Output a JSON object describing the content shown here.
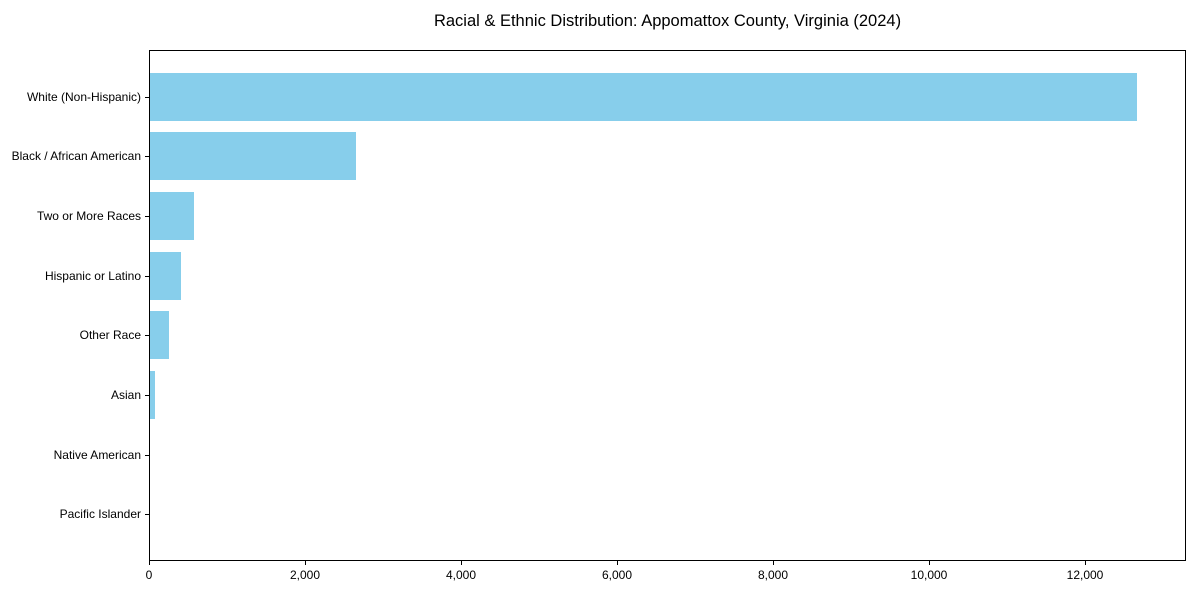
{
  "chart_data": {
    "type": "bar",
    "orientation": "horizontal",
    "title": "Racial & Ethnic Distribution: Appomattox County, Virginia (2024)",
    "categories": [
      "White (Non-Hispanic)",
      "Black / African American",
      "Two or More Races",
      "Hispanic or Latino",
      "Other Race",
      "Asian",
      "Native American",
      "Pacific Islander"
    ],
    "values": [
      12650,
      2640,
      570,
      400,
      245,
      65,
      0,
      0
    ],
    "bar_color": "#87ceeb",
    "xlim": [
      0,
      13290
    ],
    "x_ticks": [
      0,
      2000,
      4000,
      6000,
      8000,
      10000,
      12000
    ],
    "x_tick_labels": [
      "0",
      "2,000",
      "4,000",
      "6,000",
      "8,000",
      "10,000",
      "12,000"
    ],
    "ylabel": "",
    "xlabel": "",
    "grid": false,
    "legend_position": "none",
    "background_color": "#ffffff",
    "text_color": "#000000"
  }
}
